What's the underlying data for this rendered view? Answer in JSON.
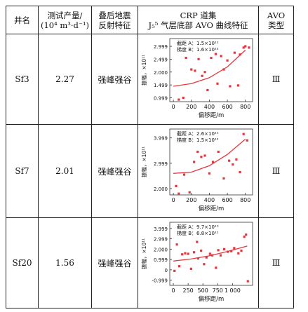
{
  "table": {
    "headers": {
      "well": "井名",
      "prod_line1": "测试产量/",
      "prod_line2": "(10⁴ m³·d⁻¹)",
      "reflect_line1": "叠后地震",
      "reflect_line2": "反射特征",
      "crp_line1": "CRP 道集",
      "crp_line2": "J₅⁵ 气层底部 AVO 曲线特征",
      "avo_line1": "AVO",
      "avo_line2": "类型"
    },
    "rows": [
      {
        "well": "Sf3",
        "production": "2.27",
        "reflection": "强峰强谷",
        "avo_type": "Ⅲ"
      },
      {
        "well": "Sf7",
        "production": "2.01",
        "reflection": "强峰强谷",
        "avo_type": "Ⅲ"
      },
      {
        "well": "Sf20",
        "production": "1.56",
        "reflection": "强峰强谷",
        "avo_type": "Ⅲ"
      }
    ]
  },
  "chart_data": [
    {
      "type": "scatter",
      "xlabel": "偏移距/m",
      "ylabel": "振幅，×10¹¹",
      "annotation_line1": "截距 A：1.5×10¹¹",
      "annotation_line2": "梯度 B：1.6×10¹²",
      "xlim": [
        -40,
        880
      ],
      "ylim": [
        0.85,
        3.3
      ],
      "xticks": [
        0,
        200,
        400,
        600,
        800
      ],
      "xtick_labels": [
        "0",
        "200",
        "400",
        "600",
        "800"
      ],
      "yticks": [
        0.999,
        1.499,
        2.0,
        2.499,
        2.999
      ],
      "ytick_labels": [
        "0.999",
        "1.499",
        "2.000",
        "2.499",
        "2.999"
      ],
      "points": [
        [
          60,
          0.93
        ],
        [
          110,
          1.0
        ],
        [
          140,
          2.55
        ],
        [
          200,
          2.1
        ],
        [
          240,
          2.05
        ],
        [
          280,
          2.5
        ],
        [
          320,
          1.85
        ],
        [
          350,
          2.0
        ],
        [
          380,
          1.3
        ],
        [
          420,
          2.55
        ],
        [
          470,
          2.7
        ],
        [
          490,
          1.55
        ],
        [
          530,
          2.62
        ],
        [
          560,
          2.1
        ],
        [
          600,
          2.45
        ],
        [
          630,
          1.45
        ],
        [
          680,
          2.75
        ],
        [
          720,
          1.48
        ],
        [
          740,
          2.68
        ],
        [
          780,
          2.95
        ],
        [
          800,
          3.0
        ],
        [
          840,
          2.95
        ]
      ],
      "trend": [
        [
          0,
          1.45
        ],
        [
          200,
          1.55
        ],
        [
          400,
          1.78
        ],
        [
          600,
          2.2
        ],
        [
          800,
          2.85
        ]
      ],
      "series_color": "#e8343b"
    },
    {
      "type": "scatter",
      "xlabel": "偏移距/m",
      "ylabel": "振幅，×10¹¹",
      "annotation_line1": "截距 A：2.6×10¹¹",
      "annotation_line2": "梯度 B：1.5×10¹²",
      "xlim": [
        -40,
        880
      ],
      "ylim": [
        1.75,
        4.35
      ],
      "xticks": [
        0,
        200,
        400,
        600,
        800
      ],
      "xtick_labels": [
        "0",
        "200",
        "400",
        "600",
        "800"
      ],
      "yticks": [
        2.0,
        2.999,
        3.999
      ],
      "ytick_labels": [
        "2.000",
        "2.999",
        "3.999"
      ],
      "points": [
        [
          30,
          2.1
        ],
        [
          60,
          1.8
        ],
        [
          120,
          2.55
        ],
        [
          180,
          1.85
        ],
        [
          230,
          3.05
        ],
        [
          270,
          3.45
        ],
        [
          310,
          3.25
        ],
        [
          350,
          3.3
        ],
        [
          400,
          2.6
        ],
        [
          440,
          3.05
        ],
        [
          500,
          3.45
        ],
        [
          560,
          2.4
        ],
        [
          620,
          3.1
        ],
        [
          660,
          2.95
        ],
        [
          700,
          3.15
        ],
        [
          740,
          2.65
        ],
        [
          780,
          4.15
        ],
        [
          820,
          3.9
        ]
      ],
      "trend": [
        [
          0,
          2.6
        ],
        [
          200,
          2.65
        ],
        [
          400,
          2.9
        ],
        [
          600,
          3.35
        ],
        [
          800,
          3.95
        ]
      ],
      "series_color": "#e8343b"
    },
    {
      "type": "scatter",
      "xlabel": "偏移距/m",
      "ylabel": "振幅，×10¹¹",
      "annotation_line1": "截距 A：9.7×10¹⁰",
      "annotation_line2": "梯度 B：6.8×10¹¹",
      "xlim": [
        -60,
        1340
      ],
      "ylim": [
        -1.5,
        4.6
      ],
      "xticks": [
        0,
        250,
        500,
        750,
        1000
      ],
      "xtick_labels": [
        "0",
        "250",
        "500",
        "750",
        "1 000"
      ],
      "yticks": [
        -0.999,
        0,
        0.999,
        2.0,
        2.999,
        3.999
      ],
      "ytick_labels": [
        "-0.999",
        "0",
        "0.999",
        "2.000",
        "2.999",
        "3.999"
      ],
      "points": [
        [
          20,
          -0.1
        ],
        [
          60,
          2.45
        ],
        [
          100,
          0.35
        ],
        [
          150,
          1.5
        ],
        [
          200,
          1.6
        ],
        [
          250,
          1.55
        ],
        [
          300,
          0.1
        ],
        [
          350,
          1.7
        ],
        [
          400,
          2.7
        ],
        [
          420,
          1.1
        ],
        [
          470,
          1.85
        ],
        [
          520,
          0.55
        ],
        [
          560,
          1.2
        ],
        [
          620,
          1.55
        ],
        [
          660,
          1.4
        ],
        [
          720,
          0.2
        ],
        [
          760,
          1.9
        ],
        [
          800,
          1.4
        ],
        [
          860,
          2.0
        ],
        [
          920,
          1.75
        ],
        [
          980,
          1.8
        ],
        [
          1030,
          2.1
        ],
        [
          1100,
          1.6
        ],
        [
          1150,
          1.85
        ],
        [
          1200,
          3.2
        ],
        [
          1230,
          3.4
        ],
        [
          1260,
          -1.1
        ]
      ],
      "trend": [
        [
          0,
          0.85
        ],
        [
          300,
          1.05
        ],
        [
          600,
          1.35
        ],
        [
          900,
          1.75
        ],
        [
          1250,
          2.3
        ]
      ],
      "series_color": "#e8343b"
    }
  ]
}
